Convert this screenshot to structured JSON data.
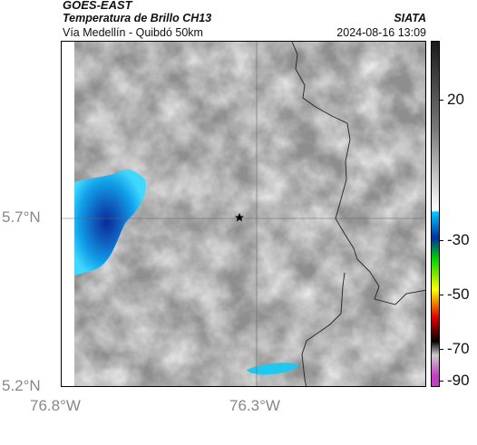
{
  "header": {
    "title": "GOES-EAST",
    "subtitle": "Temperatura de Brillo CH13",
    "source": "SIATA",
    "area": "Vía Medellín - Quibdó 50km",
    "datetime": "2024-08-16 13:09"
  },
  "map": {
    "lat_labels": [
      "5.7°N",
      "5.2°N"
    ],
    "lon_labels": [
      "76.8°W",
      "76.3°W"
    ],
    "marker_icon": "star-icon"
  },
  "colorbar": {
    "ticks": [
      "20",
      "-30",
      "-50",
      "-70",
      "-90"
    ],
    "colors": {
      "warm_top": "#1a1a1a",
      "cold_cyan": "#00c8ff",
      "green": "#00d000",
      "yellow": "#ffff00",
      "red": "#e00000",
      "magenta": "#c040c0"
    }
  }
}
